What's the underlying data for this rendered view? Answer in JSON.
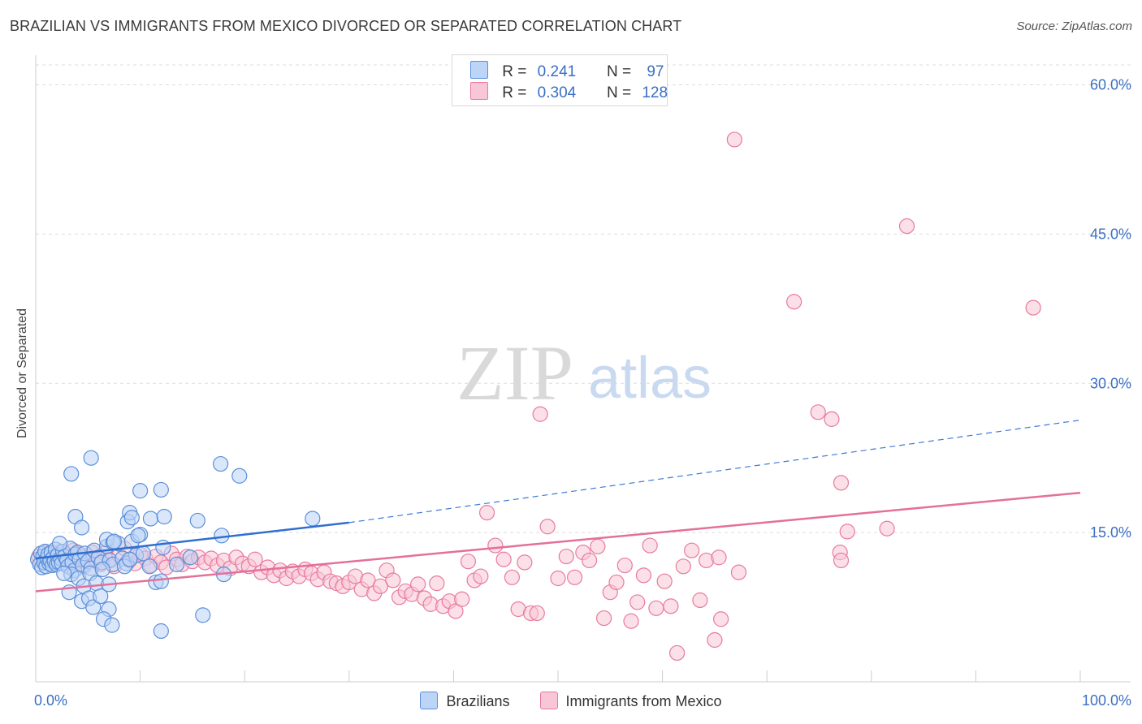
{
  "title": "BRAZILIAN VS IMMIGRANTS FROM MEXICO DIVORCED OR SEPARATED CORRELATION CHART",
  "source": "Source: ZipAtlas.com",
  "watermark": {
    "zip": "ZIP",
    "atlas": "atlas"
  },
  "colors": {
    "brazilians": "#5b8fd9",
    "brazilians_fill": "#bcd4f5",
    "mexico": "#e87aa0",
    "mexico_fill": "#f8c6d6",
    "value_text": "#3a6fc4",
    "grid": "#dddddd"
  },
  "legend": {
    "brazilians": {
      "r_label": "R =",
      "r_value": "0.241",
      "n_label": "N =",
      "n_value": "97"
    },
    "mexico": {
      "r_label": "R =",
      "r_value": "0.304",
      "n_label": "N =",
      "n_value": "128"
    }
  },
  "chart_data": {
    "type": "scatter",
    "title": "BRAZILIAN VS IMMIGRANTS FROM MEXICO DIVORCED OR SEPARATED CORRELATION CHART",
    "xlabel": "",
    "ylabel": "Divorced or Separated",
    "xlim": [
      0,
      100
    ],
    "ylim": [
      0,
      62
    ],
    "x_tick_labels": [
      "0.0%",
      "100.0%"
    ],
    "y_ticks": [
      15,
      30,
      45,
      60
    ],
    "y_tick_labels": [
      "15.0%",
      "30.0%",
      "45.0%",
      "60.0%"
    ],
    "grid": true,
    "legend_position": "top-center",
    "series": [
      {
        "name": "Brazilians",
        "r": 0.241,
        "n": 97,
        "trend": {
          "x": [
            0,
            30
          ],
          "y": [
            12.4,
            16.0
          ],
          "dashed_extension_to": [
            100,
            26.3
          ]
        },
        "points": [
          [
            0.2,
            12.3
          ],
          [
            0.4,
            11.8
          ],
          [
            0.5,
            12.9
          ],
          [
            0.6,
            11.5
          ],
          [
            0.7,
            12.6
          ],
          [
            0.8,
            12.0
          ],
          [
            0.9,
            13.1
          ],
          [
            1.0,
            11.6
          ],
          [
            1.1,
            12.4
          ],
          [
            1.2,
            12.8
          ],
          [
            1.3,
            11.9
          ],
          [
            1.4,
            12.2
          ],
          [
            1.5,
            13.0
          ],
          [
            1.6,
            11.7
          ],
          [
            1.7,
            12.5
          ],
          [
            1.8,
            12.1
          ],
          [
            1.9,
            13.3
          ],
          [
            2.0,
            11.8
          ],
          [
            2.1,
            12.7
          ],
          [
            2.2,
            12.0
          ],
          [
            2.4,
            12.4
          ],
          [
            2.5,
            11.9
          ],
          [
            2.6,
            13.1
          ],
          [
            2.8,
            12.6
          ],
          [
            3.0,
            12.2
          ],
          [
            3.1,
            11.6
          ],
          [
            3.3,
            13.4
          ],
          [
            3.5,
            12.0
          ],
          [
            3.7,
            11.2
          ],
          [
            3.8,
            12.8
          ],
          [
            4.0,
            13.0
          ],
          [
            4.2,
            12.3
          ],
          [
            4.5,
            11.7
          ],
          [
            4.7,
            12.9
          ],
          [
            5.0,
            12.1
          ],
          [
            5.3,
            11.4
          ],
          [
            5.6,
            13.2
          ],
          [
            6.0,
            12.5
          ],
          [
            6.3,
            12.0
          ],
          [
            6.8,
            13.6
          ],
          [
            7.1,
            12.2
          ],
          [
            7.4,
            11.8
          ],
          [
            7.9,
            13.9
          ],
          [
            8.3,
            12.4
          ],
          [
            8.7,
            11.9
          ],
          [
            9.2,
            14.1
          ],
          [
            9.6,
            12.7
          ],
          [
            2.3,
            13.9
          ],
          [
            3.4,
            10.8
          ],
          [
            4.1,
            10.4
          ],
          [
            4.6,
            9.6
          ],
          [
            5.2,
            10.9
          ],
          [
            5.8,
            9.9
          ],
          [
            6.4,
            11.3
          ],
          [
            3.2,
            9.0
          ],
          [
            4.4,
            8.1
          ],
          [
            5.1,
            8.4
          ],
          [
            5.5,
            7.5
          ],
          [
            6.2,
            8.6
          ],
          [
            7.0,
            7.3
          ],
          [
            6.5,
            6.3
          ],
          [
            7.3,
            5.7
          ],
          [
            7.0,
            9.8
          ],
          [
            8.5,
            11.6
          ],
          [
            9.0,
            12.3
          ],
          [
            10.3,
            12.9
          ],
          [
            10.9,
            11.6
          ],
          [
            11.5,
            10.0
          ],
          [
            12.2,
            13.5
          ],
          [
            13.5,
            11.8
          ],
          [
            14.8,
            12.5
          ],
          [
            12.0,
            10.1
          ],
          [
            3.8,
            16.6
          ],
          [
            4.4,
            15.5
          ],
          [
            8.8,
            16.1
          ],
          [
            9.0,
            17.0
          ],
          [
            9.2,
            16.5
          ],
          [
            11.0,
            16.4
          ],
          [
            12.3,
            16.6
          ],
          [
            10.0,
            14.8
          ],
          [
            6.8,
            14.3
          ],
          [
            7.4,
            14.0
          ],
          [
            7.5,
            14.1
          ],
          [
            9.8,
            14.7
          ],
          [
            3.4,
            20.9
          ],
          [
            5.3,
            22.5
          ],
          [
            10.0,
            19.2
          ],
          [
            12.0,
            19.3
          ],
          [
            15.5,
            16.2
          ],
          [
            17.8,
            14.7
          ],
          [
            17.7,
            21.9
          ],
          [
            19.5,
            20.7
          ],
          [
            18.0,
            10.8
          ],
          [
            12.0,
            5.1
          ],
          [
            16.0,
            6.7
          ],
          [
            26.5,
            16.4
          ],
          [
            2.7,
            10.9
          ]
        ]
      },
      {
        "name": "Immigrants from Mexico",
        "r": 0.304,
        "n": 128,
        "trend": {
          "x": [
            0,
            100
          ],
          "y": [
            9.1,
            19.0
          ]
        },
        "points": [
          [
            0.3,
            12.6
          ],
          [
            0.6,
            12.1
          ],
          [
            0.9,
            13.0
          ],
          [
            1.2,
            12.4
          ],
          [
            1.5,
            11.8
          ],
          [
            1.8,
            12.9
          ],
          [
            2.1,
            12.2
          ],
          [
            2.4,
            13.1
          ],
          [
            2.7,
            12.5
          ],
          [
            3.0,
            11.9
          ],
          [
            3.3,
            12.7
          ],
          [
            3.6,
            13.2
          ],
          [
            3.9,
            12.0
          ],
          [
            4.2,
            12.8
          ],
          [
            4.6,
            11.6
          ],
          [
            5.0,
            12.4
          ],
          [
            5.4,
            13.0
          ],
          [
            5.8,
            12.1
          ],
          [
            6.2,
            11.8
          ],
          [
            6.6,
            12.9
          ],
          [
            7.0,
            12.3
          ],
          [
            7.5,
            11.6
          ],
          [
            8.0,
            12.7
          ],
          [
            8.5,
            13.4
          ],
          [
            9.0,
            12.2
          ],
          [
            9.5,
            11.9
          ],
          [
            10.0,
            12.8
          ],
          [
            10.5,
            12.4
          ],
          [
            11.0,
            11.7
          ],
          [
            11.5,
            12.6
          ],
          [
            12.0,
            12.0
          ],
          [
            12.5,
            11.5
          ],
          [
            13.0,
            12.9
          ],
          [
            13.5,
            12.3
          ],
          [
            14.0,
            11.8
          ],
          [
            14.5,
            12.6
          ],
          [
            15.0,
            12.1
          ],
          [
            15.6,
            12.5
          ],
          [
            16.2,
            12.0
          ],
          [
            16.8,
            12.4
          ],
          [
            17.4,
            11.7
          ],
          [
            18.0,
            12.2
          ],
          [
            18.6,
            11.4
          ],
          [
            19.2,
            12.5
          ],
          [
            19.8,
            11.9
          ],
          [
            20.4,
            11.6
          ],
          [
            21.0,
            12.3
          ],
          [
            21.6,
            11.0
          ],
          [
            22.2,
            11.5
          ],
          [
            22.8,
            10.7
          ],
          [
            23.4,
            11.2
          ],
          [
            24.0,
            10.4
          ],
          [
            24.6,
            11.1
          ],
          [
            25.2,
            10.6
          ],
          [
            25.8,
            11.3
          ],
          [
            26.4,
            10.9
          ],
          [
            27.0,
            10.3
          ],
          [
            27.6,
            11.0
          ],
          [
            28.2,
            10.1
          ],
          [
            28.8,
            9.9
          ],
          [
            29.4,
            9.6
          ],
          [
            30.0,
            10.0
          ],
          [
            30.6,
            10.6
          ],
          [
            31.2,
            9.3
          ],
          [
            31.8,
            10.2
          ],
          [
            32.4,
            8.9
          ],
          [
            33.0,
            9.6
          ],
          [
            33.6,
            11.2
          ],
          [
            34.2,
            10.2
          ],
          [
            34.8,
            8.5
          ],
          [
            35.4,
            9.1
          ],
          [
            36.0,
            8.8
          ],
          [
            36.6,
            9.8
          ],
          [
            37.2,
            8.4
          ],
          [
            37.8,
            7.8
          ],
          [
            38.4,
            9.9
          ],
          [
            39.0,
            7.6
          ],
          [
            39.6,
            8.1
          ],
          [
            40.2,
            7.1
          ],
          [
            40.8,
            8.3
          ],
          [
            41.4,
            12.1
          ],
          [
            42.0,
            10.2
          ],
          [
            42.6,
            10.6
          ],
          [
            43.2,
            17.0
          ],
          [
            44.0,
            13.7
          ],
          [
            44.8,
            12.3
          ],
          [
            45.6,
            10.5
          ],
          [
            46.2,
            7.3
          ],
          [
            46.8,
            12.0
          ],
          [
            47.4,
            6.9
          ],
          [
            48.0,
            6.9
          ],
          [
            49.0,
            15.6
          ],
          [
            50.0,
            10.4
          ],
          [
            50.8,
            12.6
          ],
          [
            51.6,
            10.5
          ],
          [
            52.4,
            13.0
          ],
          [
            53.0,
            12.2
          ],
          [
            53.8,
            13.6
          ],
          [
            54.4,
            6.4
          ],
          [
            55.0,
            9.0
          ],
          [
            55.6,
            10.0
          ],
          [
            56.4,
            11.7
          ],
          [
            57.0,
            6.1
          ],
          [
            57.6,
            8.0
          ],
          [
            58.2,
            10.7
          ],
          [
            58.8,
            13.7
          ],
          [
            59.4,
            7.4
          ],
          [
            60.2,
            10.1
          ],
          [
            60.8,
            7.6
          ],
          [
            61.4,
            2.9
          ],
          [
            62.0,
            11.6
          ],
          [
            62.8,
            13.2
          ],
          [
            63.6,
            8.2
          ],
          [
            64.2,
            12.2
          ],
          [
            65.0,
            4.2
          ],
          [
            65.6,
            6.3
          ],
          [
            65.4,
            12.5
          ],
          [
            67.3,
            11.0
          ],
          [
            48.3,
            26.9
          ],
          [
            74.9,
            27.1
          ],
          [
            76.2,
            26.4
          ],
          [
            77.1,
            20.0
          ],
          [
            77.0,
            13.0
          ],
          [
            77.1,
            12.2
          ],
          [
            77.7,
            15.1
          ],
          [
            81.5,
            15.4
          ],
          [
            66.9,
            54.5
          ],
          [
            72.6,
            38.2
          ],
          [
            83.4,
            45.8
          ],
          [
            95.5,
            37.6
          ]
        ]
      }
    ]
  },
  "bottom_legend": {
    "brazilians": "Brazilians",
    "mexico": "Immigrants from Mexico"
  }
}
